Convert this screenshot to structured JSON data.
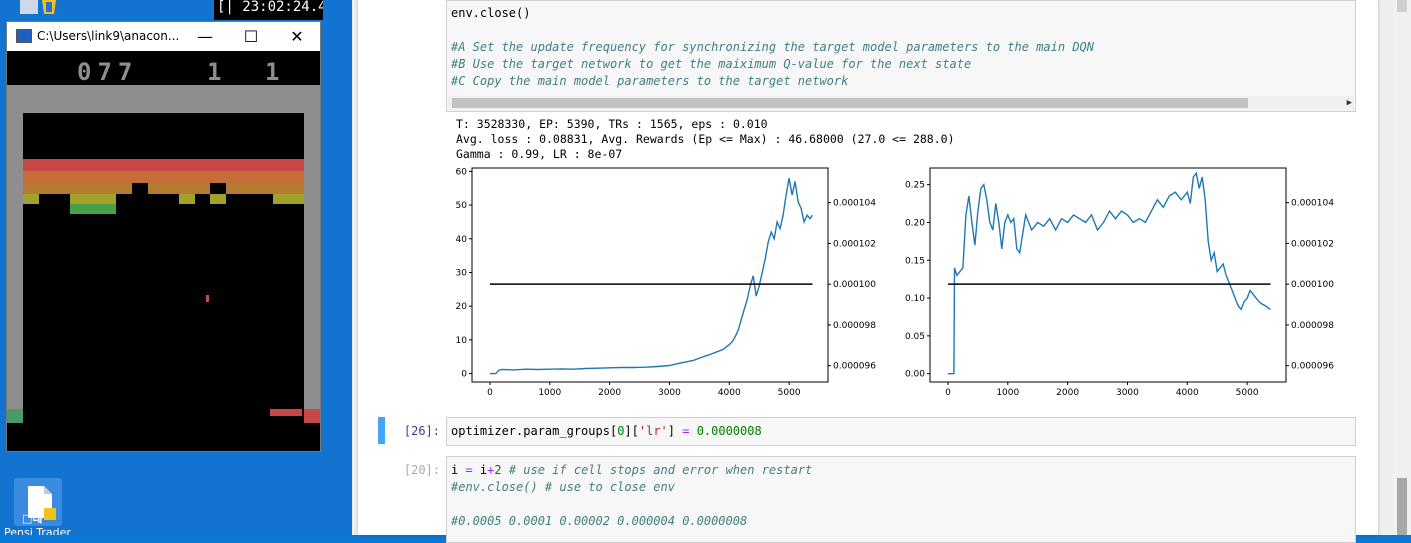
{
  "desktop": {
    "clock_text": "[| 23:02:24.4",
    "bottom_icon_label": "Pensi Trader"
  },
  "console_window": {
    "title": "C:\\Users\\link9\\anacon...",
    "minimize": "—",
    "maximize": "☐",
    "close": "✕",
    "score": "077",
    "lives": "1",
    "player": "1",
    "colors": {
      "wall": "#8e8e8e",
      "row_red": "#c84848",
      "row_orange": "#c66c3a",
      "row_gold": "#b47a30",
      "row_yellow": "#a2a22a",
      "row_green": "#48a048",
      "paddle": "#c84848",
      "ball": "#c84848"
    }
  },
  "notebook": {
    "cell_top": {
      "lines": [
        {
          "parts": [
            {
              "t": "env.",
              "c": ""
            },
            {
              "t": "close",
              "c": "fn"
            },
            {
              "t": "()",
              "c": ""
            }
          ]
        },
        {
          "parts": []
        },
        {
          "parts": [
            {
              "t": "#A Set the update frequency for synchronizing the target model parameters to the main DQN",
              "c": "cm"
            }
          ]
        },
        {
          "parts": [
            {
              "t": "#B Use the target network to get the maiximum Q-value for the next state",
              "c": "cm"
            }
          ]
        },
        {
          "parts": [
            {
              "t": "#C Copy the main model parameters to the target network",
              "c": "cm"
            }
          ]
        }
      ]
    },
    "output_lines": [
      "T: 3528330, EP: 5390, TRs : 1565, eps : 0.010",
      "Avg. loss : 0.08831, Avg. Rewards (Ep <= Max) : 46.68000 (27.0 <= 288.0)",
      "Gamma : 0.99, LR : 8e-07"
    ],
    "cell_26": {
      "prompt": "[26]:",
      "parts": [
        {
          "t": "optimizer.",
          "c": ""
        },
        {
          "t": "param_groups",
          "c": ""
        },
        {
          "t": "[",
          "c": ""
        },
        {
          "t": "0",
          "c": "nm"
        },
        {
          "t": "][",
          "c": ""
        },
        {
          "t": "'lr'",
          "c": "st"
        },
        {
          "t": "] ",
          "c": ""
        },
        {
          "t": "=",
          "c": "op"
        },
        {
          "t": " ",
          "c": ""
        },
        {
          "t": "0.0000008",
          "c": "nm"
        }
      ]
    },
    "cell_20": {
      "prompt": "[20]:",
      "lines": [
        {
          "parts": [
            {
              "t": "i ",
              "c": ""
            },
            {
              "t": "=",
              "c": "op"
            },
            {
              "t": " i",
              "c": ""
            },
            {
              "t": "+",
              "c": "op"
            },
            {
              "t": "2",
              "c": "nm"
            },
            {
              "t": " # use if cell stops and error when restart",
              "c": "cm"
            }
          ]
        },
        {
          "parts": [
            {
              "t": "#env.close() # use to close env",
              "c": "cm"
            }
          ]
        },
        {
          "parts": []
        },
        {
          "parts": [
            {
              "t": "#0.0005 0.0001 0.00002 0.000004 0.0000008",
              "c": "cm"
            }
          ]
        }
      ]
    }
  },
  "chart_data": [
    {
      "type": "line",
      "title": "",
      "xlabel": "",
      "ylabel": "",
      "xlim": [
        -300,
        5650
      ],
      "ylim": [
        -2.5,
        61
      ],
      "y2lim": [
        9.52e-05,
        0.0001057
      ],
      "x_ticks": [
        0,
        1000,
        2000,
        3000,
        4000,
        5000
      ],
      "y_ticks": [
        0,
        10,
        20,
        30,
        40,
        50,
        60
      ],
      "y2_ticks": [
        9.6e-05,
        9.8e-05,
        0.0001,
        0.000102,
        0.000104
      ],
      "y2_tick_labels": [
        "0.000096",
        "0.000098",
        "0.000100",
        "0.000102",
        "0.000104"
      ],
      "line_color": "#1f77b4",
      "ref_color": "#000000",
      "series": [
        {
          "x": [
            0,
            100,
            150,
            200,
            400,
            600,
            800,
            1000,
            1200,
            1400,
            1600,
            1800,
            2000,
            2200,
            2400,
            2600,
            2800,
            3000,
            3200,
            3400,
            3500,
            3600,
            3700,
            3800,
            3900,
            4000,
            4050,
            4100,
            4150,
            4200,
            4250,
            4300,
            4350,
            4400,
            4450,
            4500,
            4550,
            4600,
            4650,
            4700,
            4750,
            4800,
            4850,
            4900,
            4950,
            5000,
            5050,
            5100,
            5150,
            5200,
            5250,
            5300,
            5350,
            5390
          ],
          "y": [
            0,
            0,
            1,
            1.2,
            1.1,
            1.3,
            1.2,
            1.3,
            1.4,
            1.3,
            1.5,
            1.6,
            1.7,
            1.8,
            1.8,
            1.9,
            2.1,
            2.4,
            3.2,
            3.9,
            4.6,
            5.2,
            5.8,
            6.5,
            7.2,
            8.6,
            9.5,
            11,
            13,
            16,
            19,
            22,
            26,
            29,
            23,
            26,
            30,
            34,
            39,
            42,
            40,
            45,
            43,
            47,
            53,
            58,
            53,
            57,
            51,
            49,
            45,
            47,
            46,
            47
          ]
        }
      ],
      "reference_line": {
        "x_start": 0,
        "x_end": 5390,
        "value": 0.0001
      }
    },
    {
      "type": "line",
      "title": "",
      "xlabel": "",
      "ylabel": "",
      "xlim": [
        -300,
        5650
      ],
      "ylim": [
        -0.011,
        0.272
      ],
      "y2lim": [
        9.52e-05,
        0.0001057
      ],
      "x_ticks": [
        0,
        1000,
        2000,
        3000,
        4000,
        5000
      ],
      "y_ticks": [
        0.0,
        0.05,
        0.1,
        0.15,
        0.2,
        0.25
      ],
      "y_tick_labels": [
        "0.00",
        "0.05",
        "0.10",
        "0.15",
        "0.20",
        "0.25"
      ],
      "y2_ticks": [
        9.6e-05,
        9.8e-05,
        0.0001,
        0.000102,
        0.000104
      ],
      "y2_tick_labels": [
        "0.000096",
        "0.000098",
        "0.000100",
        "0.000102",
        "0.000104"
      ],
      "line_color": "#1f77b4",
      "ref_color": "#000000",
      "series": [
        {
          "x": [
            0,
            80,
            100,
            110,
            150,
            200,
            250,
            300,
            350,
            400,
            450,
            500,
            550,
            600,
            650,
            700,
            750,
            800,
            850,
            900,
            950,
            1000,
            1050,
            1100,
            1150,
            1200,
            1300,
            1400,
            1500,
            1600,
            1700,
            1800,
            1900,
            2000,
            2100,
            2200,
            2300,
            2400,
            2500,
            2600,
            2700,
            2800,
            2900,
            3000,
            3100,
            3200,
            3300,
            3400,
            3500,
            3600,
            3700,
            3800,
            3900,
            4000,
            4050,
            4100,
            4150,
            4200,
            4250,
            4300,
            4350,
            4400,
            4450,
            4500,
            4550,
            4600,
            4650,
            4700,
            4750,
            4800,
            4850,
            4900,
            4950,
            5000,
            5050,
            5100,
            5150,
            5200,
            5250,
            5300,
            5390
          ],
          "y": [
            0,
            0,
            0,
            0.14,
            0.13,
            0.135,
            0.14,
            0.21,
            0.235,
            0.2,
            0.17,
            0.215,
            0.245,
            0.25,
            0.23,
            0.2,
            0.19,
            0.225,
            0.2,
            0.165,
            0.2,
            0.21,
            0.2,
            0.205,
            0.165,
            0.16,
            0.21,
            0.19,
            0.2,
            0.195,
            0.205,
            0.19,
            0.205,
            0.2,
            0.21,
            0.205,
            0.2,
            0.21,
            0.19,
            0.2,
            0.215,
            0.205,
            0.215,
            0.21,
            0.2,
            0.205,
            0.2,
            0.215,
            0.23,
            0.22,
            0.235,
            0.24,
            0.23,
            0.24,
            0.225,
            0.26,
            0.265,
            0.245,
            0.26,
            0.23,
            0.175,
            0.15,
            0.16,
            0.135,
            0.14,
            0.145,
            0.13,
            0.12,
            0.11,
            0.1,
            0.09,
            0.085,
            0.095,
            0.1,
            0.11,
            0.105,
            0.1,
            0.095,
            0.092,
            0.09,
            0.085
          ]
        }
      ],
      "reference_line": {
        "x_start": 0,
        "x_end": 5390,
        "value": 0.0001
      }
    }
  ]
}
